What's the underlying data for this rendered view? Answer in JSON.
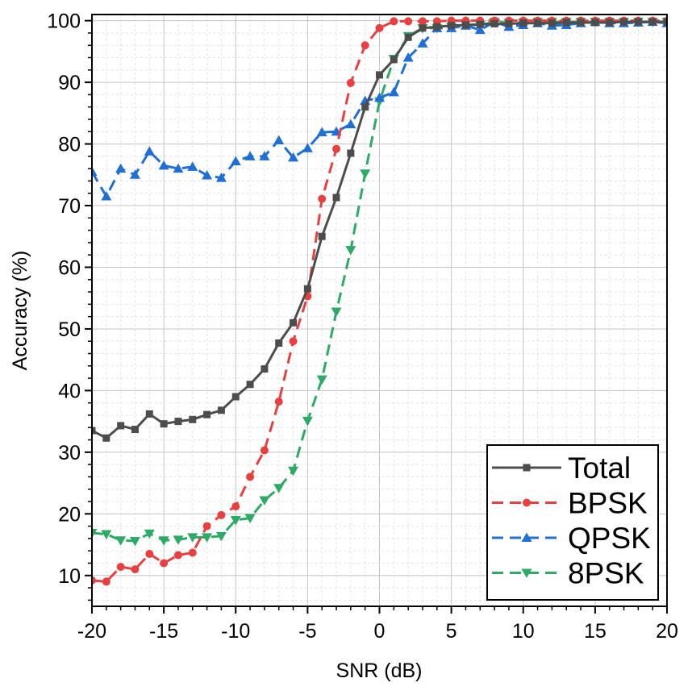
{
  "chart_data": {
    "type": "line",
    "title": "",
    "xlabel": "SNR (dB)",
    "ylabel": "Accuracy (%)",
    "xlim": [
      -20,
      20
    ],
    "ylim": [
      5,
      101
    ],
    "xticks": [
      -20,
      -15,
      -10,
      -5,
      0,
      5,
      10,
      15,
      20
    ],
    "yticks": [
      10,
      20,
      30,
      40,
      50,
      60,
      70,
      80,
      90,
      100
    ],
    "grid": true,
    "legend_position": "bottom-right",
    "x": [
      -20,
      -19,
      -18,
      -17,
      -16,
      -15,
      -14,
      -13,
      -12,
      -11,
      -10,
      -9,
      -8,
      -7,
      -6,
      -5,
      -4,
      -3,
      -2,
      -1,
      0,
      1,
      2,
      3,
      4,
      5,
      6,
      7,
      8,
      9,
      10,
      11,
      12,
      13,
      14,
      15,
      16,
      17,
      18,
      19,
      20
    ],
    "series": [
      {
        "name": "Total",
        "color": "#4d4d4d",
        "marker": "square",
        "dash": "solid",
        "values": [
          33.5,
          32.3,
          34.3,
          33.7,
          36.2,
          34.6,
          35.0,
          35.3,
          36.1,
          36.8,
          39.0,
          41.0,
          43.5,
          47.7,
          51.0,
          56.5,
          65.0,
          71.3,
          78.5,
          86.0,
          91.2,
          93.7,
          97.3,
          98.8,
          99.0,
          99.2,
          99.3,
          99.4,
          99.5,
          99.5,
          99.6,
          99.6,
          99.6,
          99.7,
          99.7,
          99.7,
          99.7,
          99.8,
          99.8,
          99.8,
          99.8
        ]
      },
      {
        "name": "BPSK",
        "color": "#e84040",
        "marker": "circle",
        "dash": "dashed",
        "values": [
          9.2,
          9.0,
          11.4,
          11.0,
          13.5,
          12.0,
          13.3,
          13.7,
          18.0,
          19.8,
          21.2,
          26.0,
          30.3,
          38.2,
          48.0,
          55.3,
          71.1,
          79.2,
          89.9,
          96.0,
          98.8,
          99.9,
          99.9,
          99.9,
          99.9,
          100.0,
          100.0,
          100.0,
          100.0,
          100.0,
          100.0,
          100.0,
          100.0,
          100.0,
          100.0,
          100.0,
          100.0,
          100.0,
          100.0,
          100.0,
          100.0
        ]
      },
      {
        "name": "QPSK",
        "color": "#1f6fd6",
        "marker": "triangle-up",
        "dash": "dashed",
        "values": [
          75.5,
          71.5,
          76.0,
          75.0,
          78.8,
          76.5,
          76.0,
          76.3,
          74.9,
          74.5,
          77.2,
          78.0,
          78.0,
          80.6,
          77.8,
          79.3,
          81.9,
          82.0,
          83.2,
          87.0,
          87.5,
          88.4,
          94.0,
          96.3,
          98.8,
          98.8,
          99.2,
          98.5,
          99.8,
          99.0,
          99.3,
          99.6,
          99.2,
          99.3,
          99.6,
          99.8,
          99.6,
          99.6,
          99.7,
          99.8,
          99.6
        ]
      },
      {
        "name": "8PSK",
        "color": "#2eaa66",
        "marker": "triangle-down",
        "dash": "dashed",
        "values": [
          16.9,
          16.7,
          15.7,
          15.6,
          16.8,
          15.7,
          15.8,
          16.2,
          16.2,
          16.4,
          19.0,
          19.3,
          22.2,
          24.2,
          27.0,
          35.1,
          41.8,
          52.8,
          62.8,
          75.2,
          86.9,
          93.8,
          97.5,
          98.8,
          98.8,
          99.0,
          99.3,
          99.3,
          99.8,
          99.7,
          99.7,
          99.8,
          99.8,
          99.8,
          99.8,
          99.8,
          99.8,
          99.8,
          99.8,
          99.8,
          99.8
        ]
      }
    ]
  }
}
